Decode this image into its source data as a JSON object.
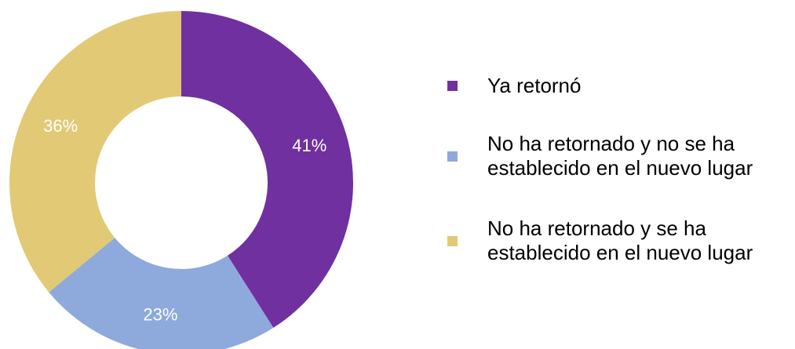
{
  "chart_data": {
    "type": "pie",
    "donut": true,
    "categories": [
      "Ya retornó",
      "No ha retornado y no se ha establecido en el nuevo lugar",
      "No ha retornado y se ha establecido en el nuevo lugar"
    ],
    "values": [
      41,
      23,
      36
    ],
    "value_labels": [
      "41%",
      "23%",
      "36%"
    ],
    "colors": [
      "#7030A0",
      "#8EA9DB",
      "#E2C975"
    ],
    "legend_position": "right",
    "title": "",
    "start_angle": "12 o'clock",
    "direction": "clockwise"
  },
  "legend": {
    "items": [
      {
        "label": "Ya retornó",
        "color": "#7030A0"
      },
      {
        "label": "No ha retornado y no se ha establecido en el nuevo lugar",
        "color": "#8EA9DB"
      },
      {
        "label": "No ha retornado y se ha establecido en el nuevo lugar",
        "color": "#E2C975"
      }
    ]
  }
}
